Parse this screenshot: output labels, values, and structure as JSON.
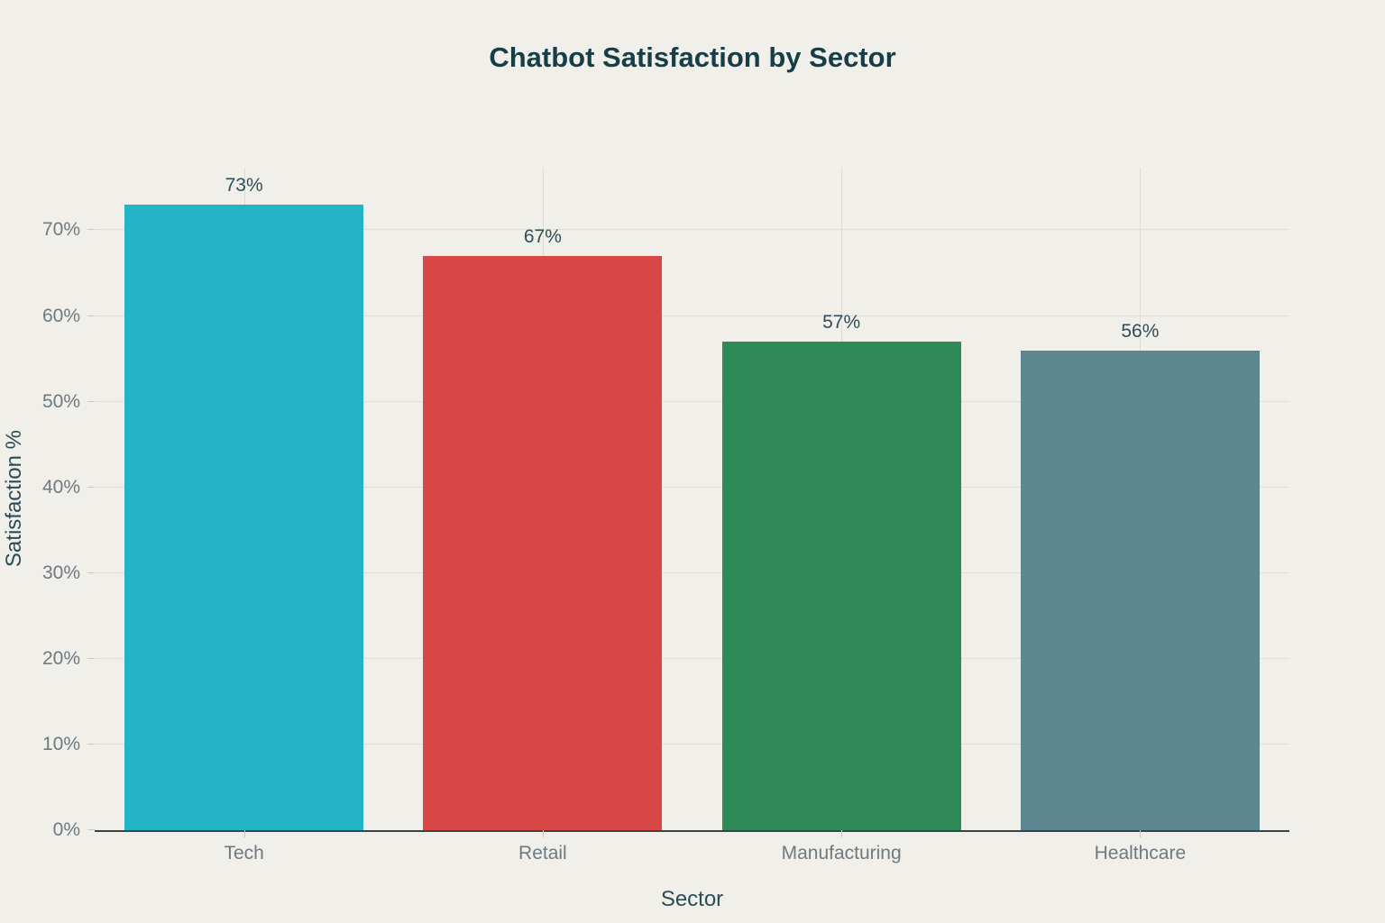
{
  "title": "Chatbot Satisfaction by Sector",
  "chart_data": {
    "type": "bar",
    "title": "Chatbot Satisfaction by Sector",
    "categories": [
      "Tech",
      "Retail",
      "Manufacturing",
      "Healthcare"
    ],
    "values": [
      73,
      67,
      57,
      56
    ],
    "value_labels": [
      "73%",
      "67%",
      "57%",
      "56%"
    ],
    "bar_colors": [
      "#23b4c8",
      "#d84646",
      "#2e8b57",
      "#5d8790"
    ],
    "xlabel": "Sector",
    "ylabel": "Satisfaction %",
    "ylim": [
      0,
      77.3
    ],
    "yticks": [
      0,
      10,
      20,
      30,
      40,
      50,
      60,
      70
    ],
    "ytick_labels": [
      "0%",
      "10%",
      "20%",
      "30%",
      "40%",
      "50%",
      "60%",
      "70%"
    ],
    "grid": "on",
    "legend": "none"
  },
  "colors": {
    "background": "#f0efe9",
    "title_text": "#163e46",
    "axis_title_text": "#2a4d55",
    "tick_label_text": "#6e7a80",
    "value_label_text": "#2e4e57",
    "gridline": "#dedcd5",
    "axis_line": "#3c4247",
    "tick_mark": "#c9c8c1"
  }
}
